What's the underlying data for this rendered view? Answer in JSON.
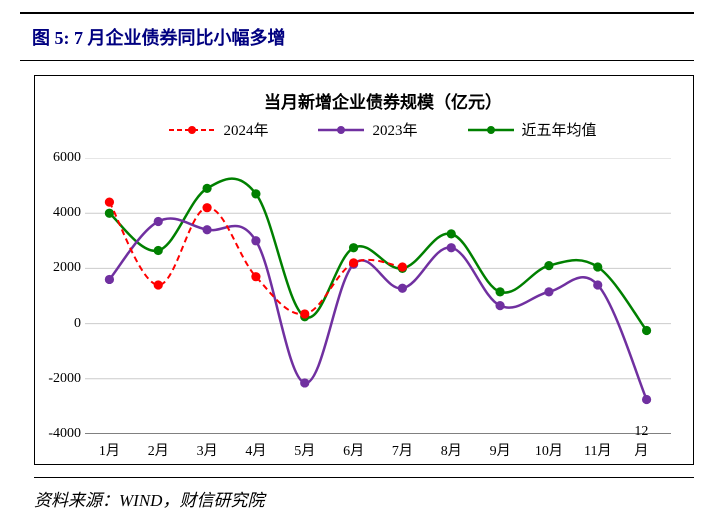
{
  "figure_title": "图 5:  7 月企业债券同比小幅多增",
  "chart": {
    "type": "line",
    "subtitle": "当月新增企业债券规模（亿元）",
    "background_color": "#ffffff",
    "border_color": "#000000",
    "grid_color": "#cccccc",
    "title_fontsize": 17,
    "label_fontsize": 14,
    "x_labels": [
      "1月",
      "2月",
      "3月",
      "4月",
      "5月",
      "6月",
      "7月",
      "8月",
      "9月",
      "10月",
      "11月",
      "12月"
    ],
    "y_axis": {
      "min": -4000,
      "max": 6000,
      "tick_step": 2000
    },
    "series": [
      {
        "name": "2024年",
        "label": "2024年",
        "color": "#ff0000",
        "style": "dashed",
        "line_width": 2,
        "marker": "circle",
        "marker_size": 6,
        "data": [
          4400,
          1400,
          4200,
          1700,
          350,
          2200,
          2050,
          null,
          null,
          null,
          null,
          null
        ]
      },
      {
        "name": "2023年",
        "label": "2023年",
        "color": "#7030a0",
        "style": "solid",
        "line_width": 2.5,
        "marker": "circle",
        "marker_size": 6,
        "data": [
          1600,
          3700,
          3400,
          3000,
          -2150,
          2150,
          1280,
          2750,
          650,
          1150,
          1400,
          -2750
        ]
      },
      {
        "name": "近五年均值",
        "label": "近五年均值",
        "color": "#008000",
        "style": "solid",
        "line_width": 2.5,
        "marker": "circle",
        "marker_size": 6,
        "data": [
          4000,
          2650,
          4900,
          4700,
          250,
          2750,
          2000,
          3250,
          1150,
          2100,
          2050,
          -250
        ]
      }
    ]
  },
  "source": "资料来源：WIND，财信研究院"
}
